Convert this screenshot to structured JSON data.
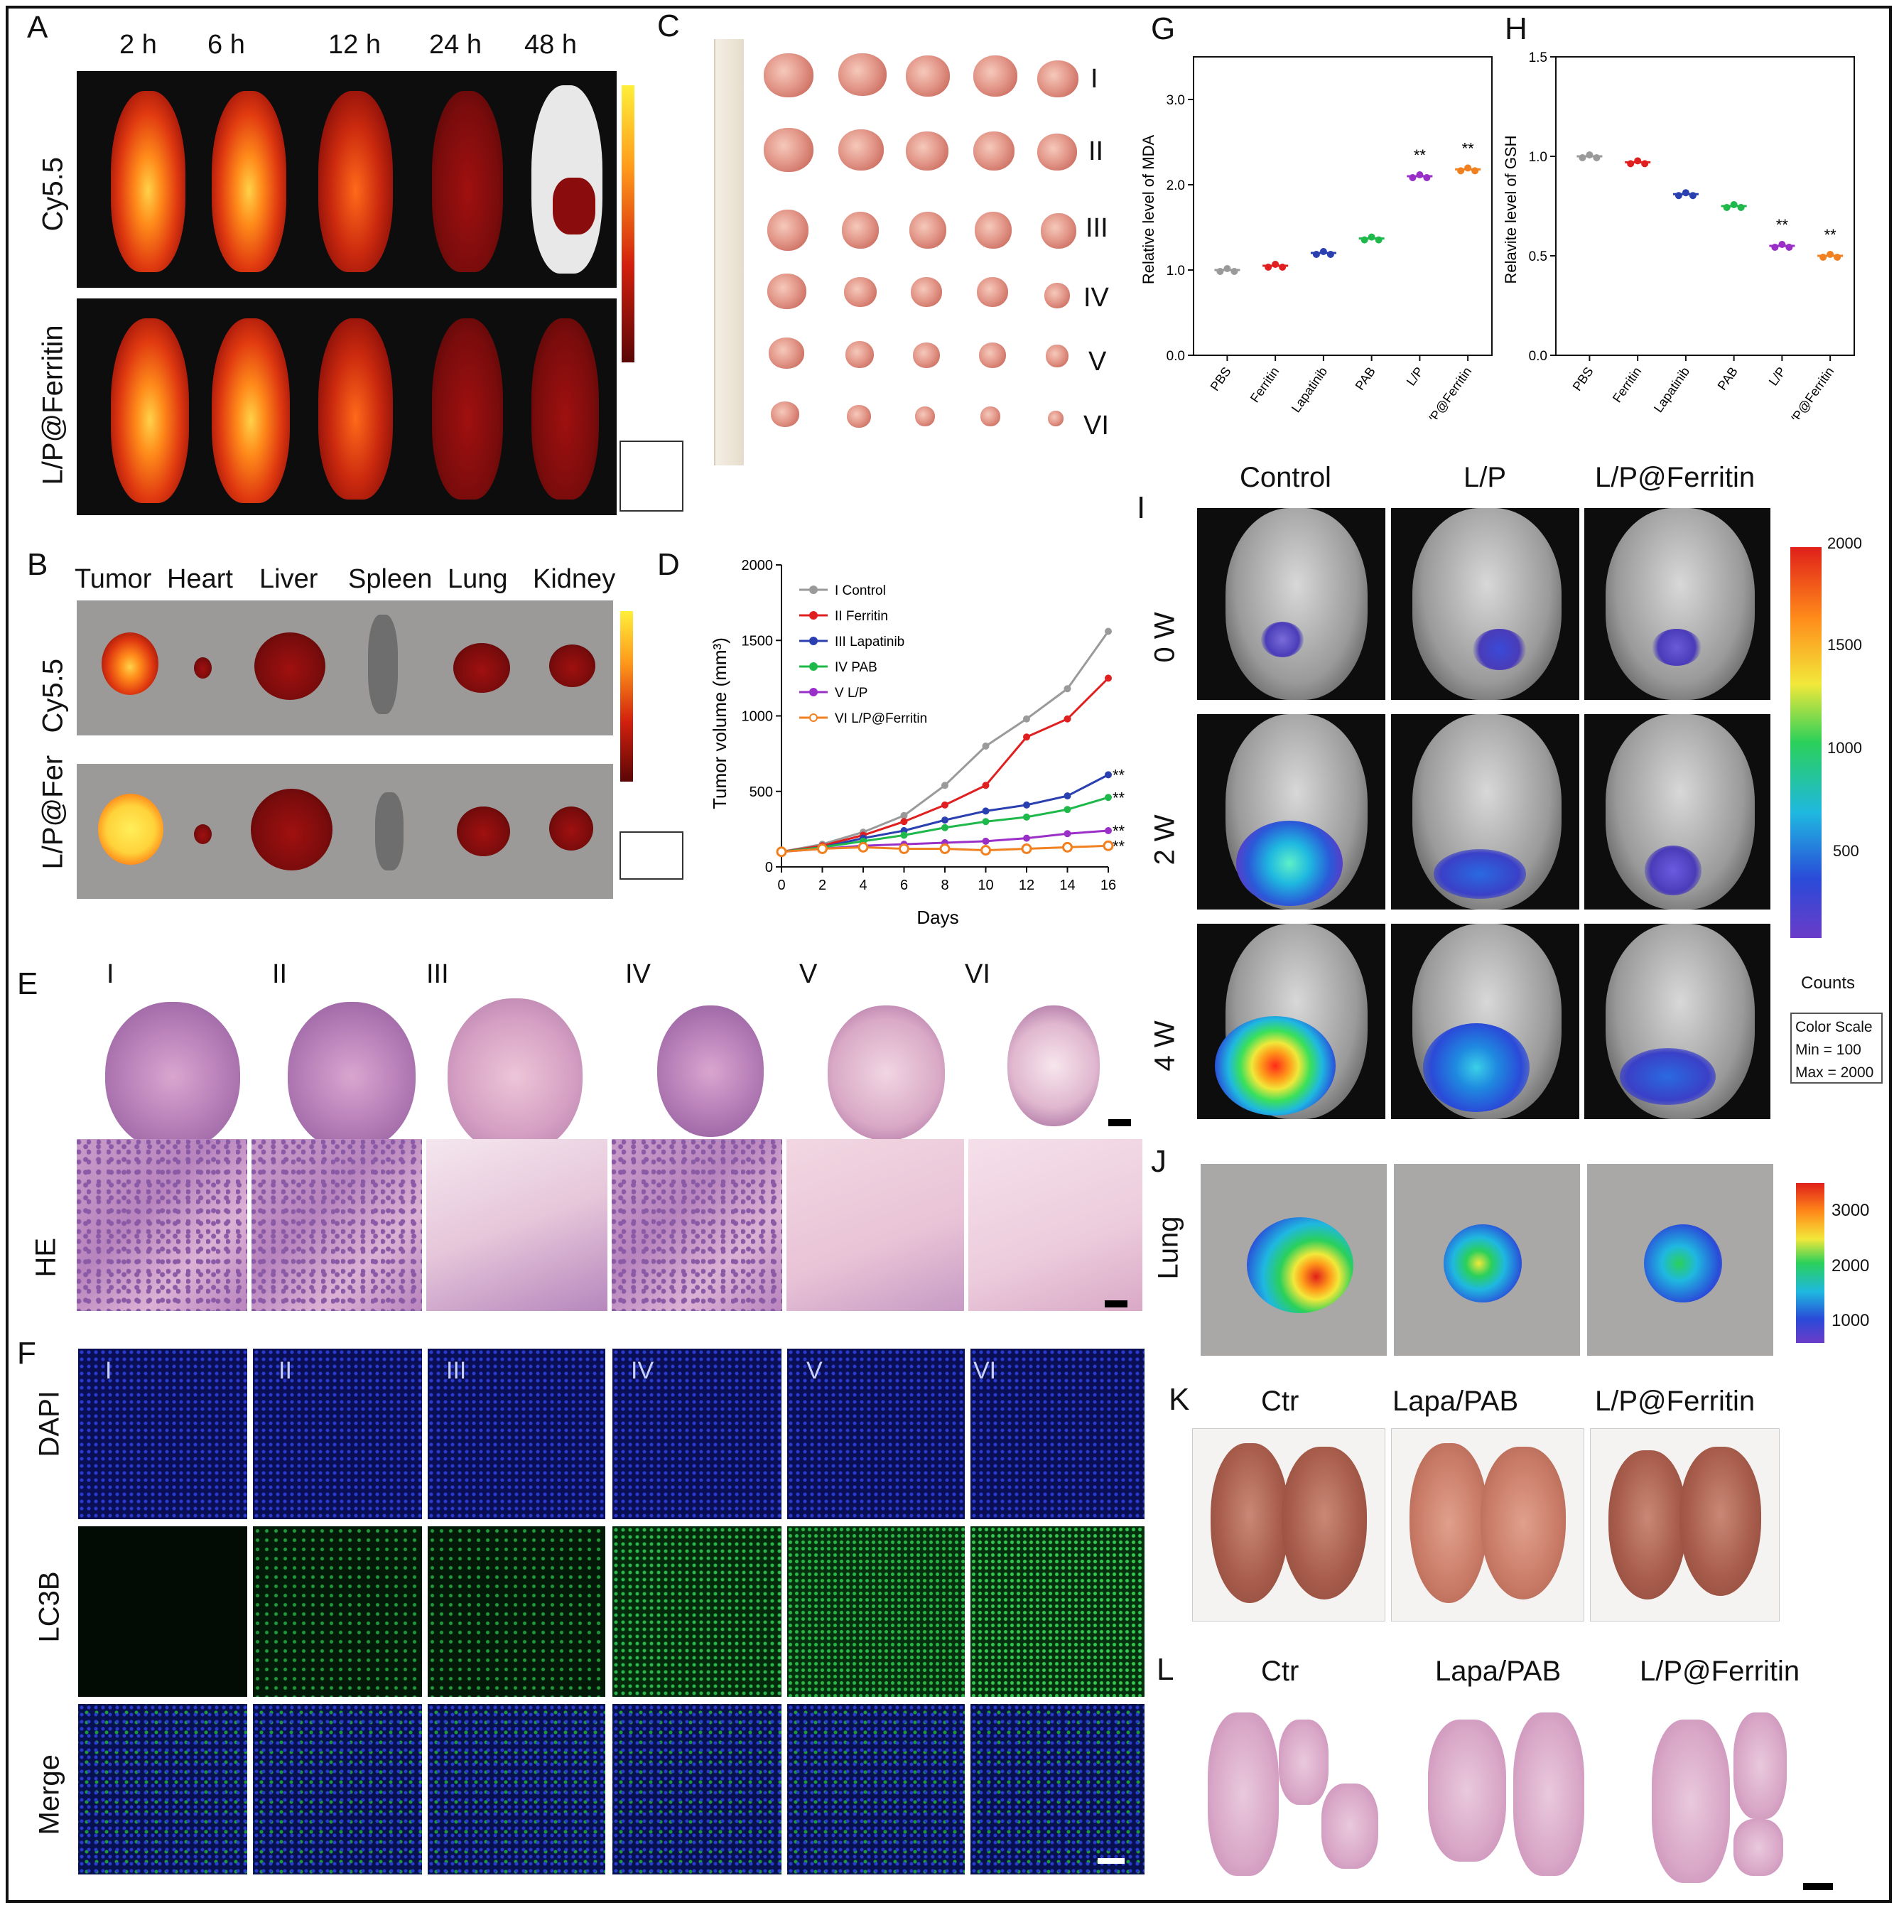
{
  "panels": {
    "A": {
      "letter": "A",
      "times": [
        "2 h",
        "6 h",
        "12 h",
        "24 h",
        "48 h"
      ],
      "rows": [
        "Cy5.5",
        "L/P@Ferritin"
      ]
    },
    "B": {
      "letter": "B",
      "organs": [
        "Tumor",
        "Heart",
        "Liver",
        "Spleen",
        "Lung",
        "Kidney"
      ],
      "rows": [
        "Cy5.5",
        "L/P@Fer"
      ]
    },
    "C": {
      "letter": "C",
      "groups": [
        "I",
        "II",
        "III",
        "IV",
        "V",
        "VI"
      ]
    },
    "E": {
      "letter": "E",
      "groups": [
        "I",
        "II",
        "III",
        "IV",
        "V",
        "VI"
      ],
      "row": "HE"
    },
    "F": {
      "letter": "F",
      "groups": [
        "I",
        "II",
        "III",
        "IV",
        "V",
        "VI"
      ],
      "rows": [
        "DAPI",
        "LC3B",
        "Merge"
      ]
    },
    "I": {
      "letter": "I",
      "cols": [
        "Control",
        "L/P",
        "L/P@Ferritin"
      ],
      "rows": [
        "0 W",
        "2 W",
        "4 W"
      ],
      "colorbar": {
        "ticks": [
          "2000",
          "1500",
          "1000",
          "500"
        ],
        "unit": "Counts",
        "scale_title": "Color Scale",
        "scale_min": "Min = 100",
        "scale_max": "Max = 2000"
      }
    },
    "J": {
      "letter": "J",
      "row": "Lung",
      "colorbar": {
        "ticks": [
          "3000",
          "2000",
          "1000"
        ]
      }
    },
    "K": {
      "letter": "K",
      "cols": [
        "Ctr",
        "Lapa/PAB",
        "L/P@Ferritin"
      ]
    },
    "L": {
      "letter": "L",
      "cols": [
        "Ctr",
        "Lapa/PAB",
        "L/P@Ferritin"
      ]
    }
  },
  "chart_data": [
    {
      "panel": "D",
      "type": "line",
      "xlabel": "Days",
      "ylabel": "Tumor volume (mm³)",
      "x": [
        0,
        2,
        4,
        6,
        8,
        10,
        12,
        14,
        16
      ],
      "xlim": [
        0,
        16
      ],
      "ylim": [
        0,
        2000
      ],
      "yticks": [
        0,
        500,
        1000,
        1500,
        2000
      ],
      "series": [
        {
          "name": "I  Control",
          "color": "#9a9a9a",
          "values": [
            100,
            150,
            230,
            340,
            540,
            800,
            980,
            1180,
            1560
          ]
        },
        {
          "name": "II Ferritin",
          "color": "#e02020",
          "values": [
            100,
            140,
            210,
            300,
            410,
            540,
            860,
            980,
            1250
          ]
        },
        {
          "name": "III Lapatinib",
          "color": "#2a3fb0",
          "values": [
            100,
            130,
            190,
            240,
            310,
            370,
            410,
            470,
            610
          ]
        },
        {
          "name": "IV PAB",
          "color": "#1fb84a",
          "values": [
            100,
            130,
            170,
            210,
            260,
            300,
            330,
            380,
            460
          ]
        },
        {
          "name": "V  L/P",
          "color": "#9a2fc8",
          "values": [
            100,
            120,
            140,
            150,
            160,
            170,
            190,
            220,
            240
          ]
        },
        {
          "name": "VI L/P@Ferritin",
          "color": "#f08020",
          "values": [
            100,
            120,
            130,
            120,
            120,
            110,
            120,
            130,
            140
          ]
        }
      ],
      "annotations": [
        "**",
        "**",
        "**",
        "**"
      ],
      "legend_position": "top-left"
    },
    {
      "panel": "G",
      "type": "scatter",
      "ylabel": "Relative level of MDA",
      "categories": [
        "PBS",
        "Ferritin",
        "Lapatinib",
        "PAB",
        "L/P",
        "L/P@Ferritin"
      ],
      "values": [
        1.0,
        1.05,
        1.2,
        1.37,
        2.1,
        2.18
      ],
      "colors": [
        "#9a9a9a",
        "#e02020",
        "#2a3fb0",
        "#1fb84a",
        "#9a2fc8",
        "#f08020"
      ],
      "ylim": [
        0,
        3.5
      ],
      "yticks": [
        "0.0",
        "1.0",
        "2.0",
        "3.0"
      ],
      "annotations": [
        "**",
        "**"
      ]
    },
    {
      "panel": "H",
      "type": "scatter",
      "ylabel": "Relavite level of GSH",
      "categories": [
        "PBS",
        "Ferritin",
        "Lapatinib",
        "PAB",
        "L/P",
        "L/P@Ferritin"
      ],
      "values": [
        1.0,
        0.97,
        0.81,
        0.75,
        0.55,
        0.5
      ],
      "colors": [
        "#9a9a9a",
        "#e02020",
        "#2a3fb0",
        "#1fb84a",
        "#9a2fc8",
        "#f08020"
      ],
      "ylim": [
        0,
        1.5
      ],
      "yticks": [
        "0.0",
        "0.5",
        "1.0",
        "1.5"
      ],
      "annotations": [
        "**",
        "**"
      ]
    }
  ]
}
